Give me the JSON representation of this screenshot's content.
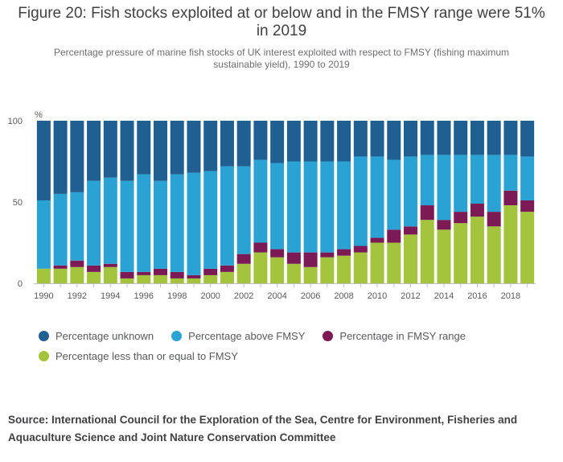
{
  "title": "Figure 20: Fish stocks exploited at or below and in the FMSY range were 51% in 2019",
  "subtitle": "Percentage pressure of marine fish stocks of UK interest exploited with respect to FMSY (fishing maximum sustainable yield), 1990 to 2019",
  "source": "Source: International Council for the Exploration of the Sea, Centre for Environment, Fisheries and Aquaculture Science and Joint Nature Conservation Committee",
  "colors": {
    "unknown": "#1f5f91",
    "above": "#2aa2d4",
    "in_range": "#7c1a56",
    "below": "#a3c43c"
  },
  "chart_data": {
    "type": "bar",
    "stacked": true,
    "title": "Figure 20: Fish stocks exploited at or below and in the FMSY range were 51% in 2019",
    "ylabel": "%",
    "xlabel": "",
    "ylim": [
      0,
      100
    ],
    "yticks": [
      "0",
      "50",
      "100"
    ],
    "x_tick_labels": [
      "1990",
      "1992",
      "1994",
      "1996",
      "1998",
      "2000",
      "2002",
      "2004",
      "2006",
      "2008",
      "2010",
      "2012",
      "2014",
      "2016",
      "2018"
    ],
    "categories": [
      1990,
      1991,
      1992,
      1993,
      1994,
      1995,
      1996,
      1997,
      1998,
      1999,
      2000,
      2001,
      2002,
      2003,
      2004,
      2005,
      2006,
      2007,
      2008,
      2009,
      2010,
      2011,
      2012,
      2013,
      2014,
      2015,
      2016,
      2017,
      2018,
      2019
    ],
    "series": [
      {
        "name": "Percentage less than or equal to FMSY",
        "key": "below",
        "values": [
          9,
          9,
          10,
          7,
          10,
          3,
          5,
          5,
          3,
          3,
          5,
          7,
          12,
          19,
          16,
          12,
          10,
          16,
          17,
          19,
          25,
          25,
          30,
          39,
          33,
          37,
          41,
          35,
          48,
          44
        ]
      },
      {
        "name": "Percentage in FMSY range",
        "key": "in_range",
        "values": [
          0,
          2,
          4,
          4,
          2,
          4,
          2,
          4,
          4,
          2,
          4,
          4,
          6,
          6,
          5,
          7,
          9,
          3,
          4,
          4,
          3,
          8,
          5,
          9,
          6,
          7,
          8,
          9,
          9,
          7
        ]
      },
      {
        "name": "Percentage above FMSY",
        "key": "above",
        "values": [
          42,
          44,
          42,
          52,
          53,
          56,
          60,
          54,
          60,
          63,
          60,
          61,
          54,
          51,
          53,
          56,
          56,
          56,
          54,
          55,
          50,
          43,
          43,
          31,
          40,
          35,
          30,
          35,
          22,
          27
        ]
      },
      {
        "name": "Percentage unknown",
        "key": "unknown",
        "values": [
          49,
          45,
          44,
          37,
          35,
          37,
          33,
          37,
          33,
          32,
          31,
          28,
          28,
          24,
          26,
          25,
          25,
          25,
          25,
          22,
          22,
          24,
          22,
          21,
          21,
          21,
          21,
          21,
          21,
          22
        ]
      }
    ],
    "legend": {
      "position": "bottom",
      "rows": [
        [
          {
            "label": "Percentage unknown",
            "key": "unknown"
          },
          {
            "label": "Percentage above FMSY",
            "key": "above"
          },
          {
            "label": "Percentage in FMSY range",
            "key": "in_range"
          }
        ],
        [
          {
            "label": "Percentage less than or equal to FMSY",
            "key": "below"
          }
        ]
      ]
    }
  }
}
